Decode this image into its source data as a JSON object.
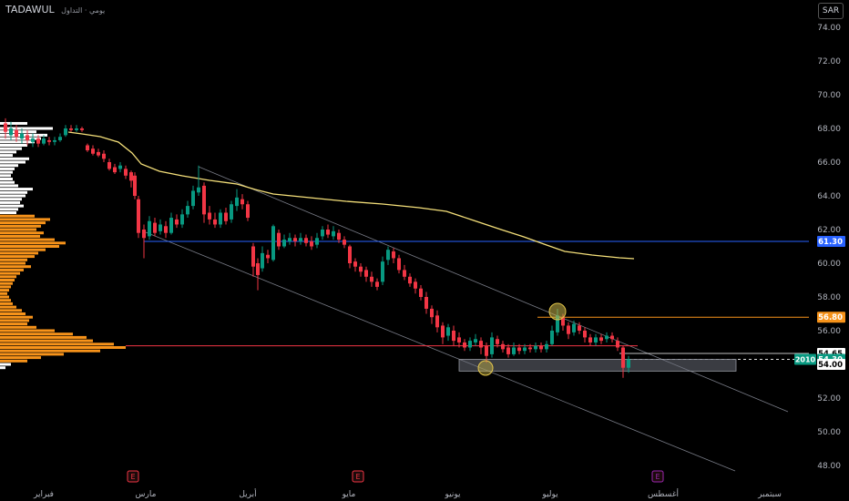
{
  "header": {
    "symbol": "TADAWUL",
    "period_label": "يومي · التداول",
    "currency_button": "SAR"
  },
  "chart_data": {
    "type": "candlestick",
    "title": "TADAWUL",
    "currency": "SAR",
    "price_axis": {
      "range": [
        48,
        74
      ],
      "ticks": [
        "74.00",
        "72.00",
        "70.00",
        "68.00",
        "66.00",
        "64.00",
        "62.00",
        "60.00",
        "58.00",
        "56.00",
        "52.00",
        "50.00",
        "48.00"
      ]
    },
    "time_axis": {
      "labels": [
        "فبراير",
        "مارس",
        "أبريل",
        "مايو",
        "يونيو",
        "يوليو",
        "أغسطس",
        "سبتمبر"
      ]
    },
    "price_labels": [
      {
        "text": "61.30",
        "price": 61.3,
        "color": "#2962ff"
      },
      {
        "text": "56.80",
        "price": 56.8,
        "color": "#f7931a"
      },
      {
        "text": "54.65",
        "price": 54.65,
        "color": "#ffffff"
      },
      {
        "text": "54.30",
        "price": 54.3,
        "color": "#089981",
        "countdown": "2010"
      },
      {
        "text": "54.00",
        "price": 54.0,
        "color": "#ffffff"
      }
    ],
    "earnings_markers": [
      "E",
      "E",
      "E"
    ],
    "levels": {
      "blue": 61.3,
      "orange": 56.8,
      "red": 55.1,
      "white": 54.65,
      "last": 54.3,
      "support": 54.0
    },
    "moving_average": {
      "color": "#f5e07a",
      "end_value": 60.3
    },
    "colors": {
      "up": "#089981",
      "down": "#f23645",
      "profile_low": "#f7931a",
      "profile_high": "#ffffff"
    }
  }
}
